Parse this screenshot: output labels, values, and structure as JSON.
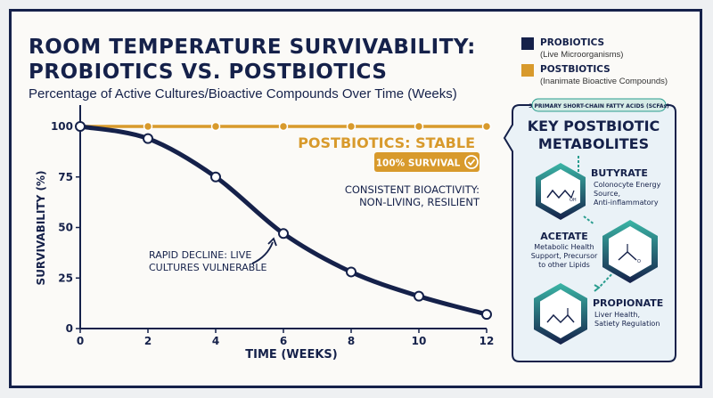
{
  "title_line1": "ROOM TEMPERATURE SURVIVABILITY:",
  "title_line2": "PROBIOTICS VS. POSTBIOTICS",
  "subtitle": "Percentage of Active Cultures/Bioactive Compounds Over Time (Weeks)",
  "legend": [
    {
      "name": "PROBIOTICS",
      "desc": "(Live Microorganisms)",
      "color": "#15214a"
    },
    {
      "name": "POSTBIOTICS",
      "desc": "(Inanimate Bioactive Compounds)",
      "color": "#d89a2c"
    }
  ],
  "colors": {
    "probiotics": "#15214a",
    "postbiotics": "#d89a2c",
    "teal": "#2a9d8f"
  },
  "chart_data": {
    "type": "line",
    "xlabel": "TIME (WEEKS)",
    "ylabel": "SURVIVABILITY (%)",
    "xlim": [
      0,
      12
    ],
    "ylim": [
      0,
      100
    ],
    "xticks": [
      0,
      2,
      4,
      6,
      8,
      10,
      12
    ],
    "yticks": [
      0,
      25,
      50,
      75,
      100
    ],
    "grid": false,
    "series": [
      {
        "name": "PROBIOTICS",
        "x": [
          0,
          2,
          4,
          6,
          8,
          10,
          12
        ],
        "y": [
          100,
          94,
          75,
          47,
          28,
          16,
          7
        ]
      },
      {
        "name": "POSTBIOTICS",
        "x": [
          0,
          2,
          4,
          6,
          8,
          10,
          12
        ],
        "y": [
          100,
          100,
          100,
          100,
          100,
          100,
          100
        ]
      }
    ],
    "annotations": {
      "stable": "POSTBIOTICS: STABLE",
      "badge": "100% SURVIVAL",
      "consistent_1": "CONSISTENT BIOACTIVITY:",
      "consistent_2": "NON-LIVING, RESILIENT",
      "decline_1": "RAPID DECLINE: LIVE",
      "decline_2": "CULTURES VULNERABLE"
    }
  },
  "panel": {
    "tag": "3 PRIMARY SHORT-CHAIN FATTY ACIDS (SCFAs)",
    "heading_1": "KEY POSTBIOTIC",
    "heading_2": "METABOLITES",
    "metabolites": [
      {
        "name": "BUTYRATE",
        "lines": [
          "Colonocyte Energy",
          "Source,",
          "Anti-inflammatory"
        ]
      },
      {
        "name": "ACETATE",
        "lines": [
          "Metabolic Health",
          "Support, Precursor",
          "to other Lipids"
        ]
      },
      {
        "name": "PROPIONATE",
        "lines": [
          "Liver Health,",
          "Satiety Regulation"
        ]
      }
    ]
  }
}
